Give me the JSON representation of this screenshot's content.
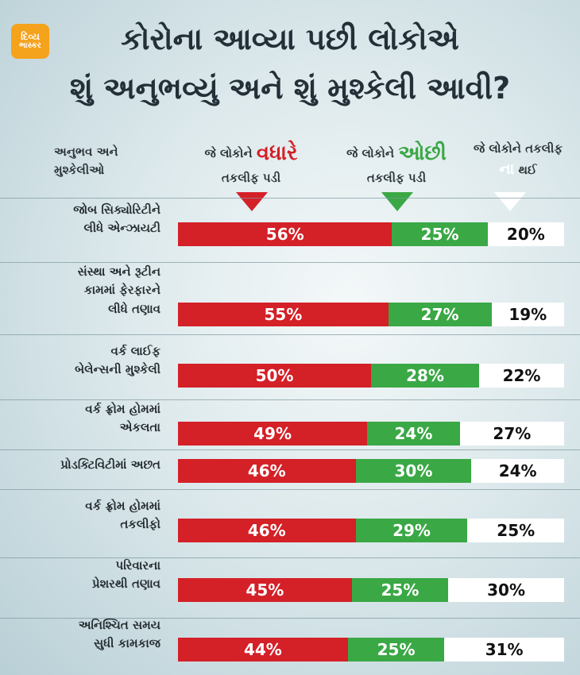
{
  "brand": {
    "line1": "દિવ્ય",
    "line2": "ભાસ્કર"
  },
  "title": {
    "line1": "કોરોના આવ્યા પછી લોકોએ",
    "line2": "શું અનુભવ્યું અને શું મુશ્કેલી આવી?"
  },
  "columns": {
    "label_header_line1": "અનુભવ અને",
    "label_header_line2": "મુશ્કેલીઓ",
    "more_prefix": "જે લોકોને",
    "more_word": "વધારે",
    "more_suffix": "તકલીફ પડી",
    "less_prefix": "જે લોકોને",
    "less_word": "ઓછી",
    "less_suffix": "તકલીફ પડી",
    "none_prefix": "જે લોકોને તકલીફ",
    "none_word": "ના",
    "none_suffix": "થઈ"
  },
  "colors": {
    "more": "#d42027",
    "less": "#3aa845",
    "none": "#ffffff"
  },
  "chart_data": {
    "type": "bar",
    "orientation": "horizontal",
    "stacked": true,
    "categories": [
      [
        "જોબ સિક્યોરિટીને",
        "લીધે એન્ઝાયટી"
      ],
      [
        "સંસ્થા અને રૂટીન",
        "કામમાં ફેરફારને",
        "લીધે તણાવ"
      ],
      [
        "વર્ક લાઈફ",
        "બેલેન્સની મુશ્કેલી"
      ],
      [
        "વર્ક ફ્રોમ હોમમાં",
        "એકલતા"
      ],
      [
        "પ્રોડક્ટિવિટીમાં અછત"
      ],
      [
        "વર્ક ફ્રોમ હોમમાં",
        "તકલીફો"
      ],
      [
        "પરિવારના",
        "પ્રેશરથી તણાવ"
      ],
      [
        "અનિશ્ચિત સમય",
        "સુધી કામકાજ"
      ]
    ],
    "series": [
      {
        "values": [
          56,
          55,
          50,
          49,
          46,
          46,
          45,
          44
        ],
        "labels": [
          "56%",
          "55%",
          "50%",
          "49%",
          "46%",
          "46%",
          "45%",
          "44%"
        ]
      },
      {
        "values": [
          25,
          27,
          28,
          24,
          30,
          29,
          25,
          25
        ],
        "labels": [
          "25%",
          "27%",
          "28%",
          "24%",
          "30%",
          "29%",
          "25%",
          "25%"
        ]
      },
      {
        "values": [
          20,
          19,
          22,
          27,
          24,
          25,
          30,
          31
        ],
        "labels": [
          "20%",
          "19%",
          "22%",
          "27%",
          "24%",
          "25%",
          "30%",
          "31%"
        ]
      }
    ]
  }
}
